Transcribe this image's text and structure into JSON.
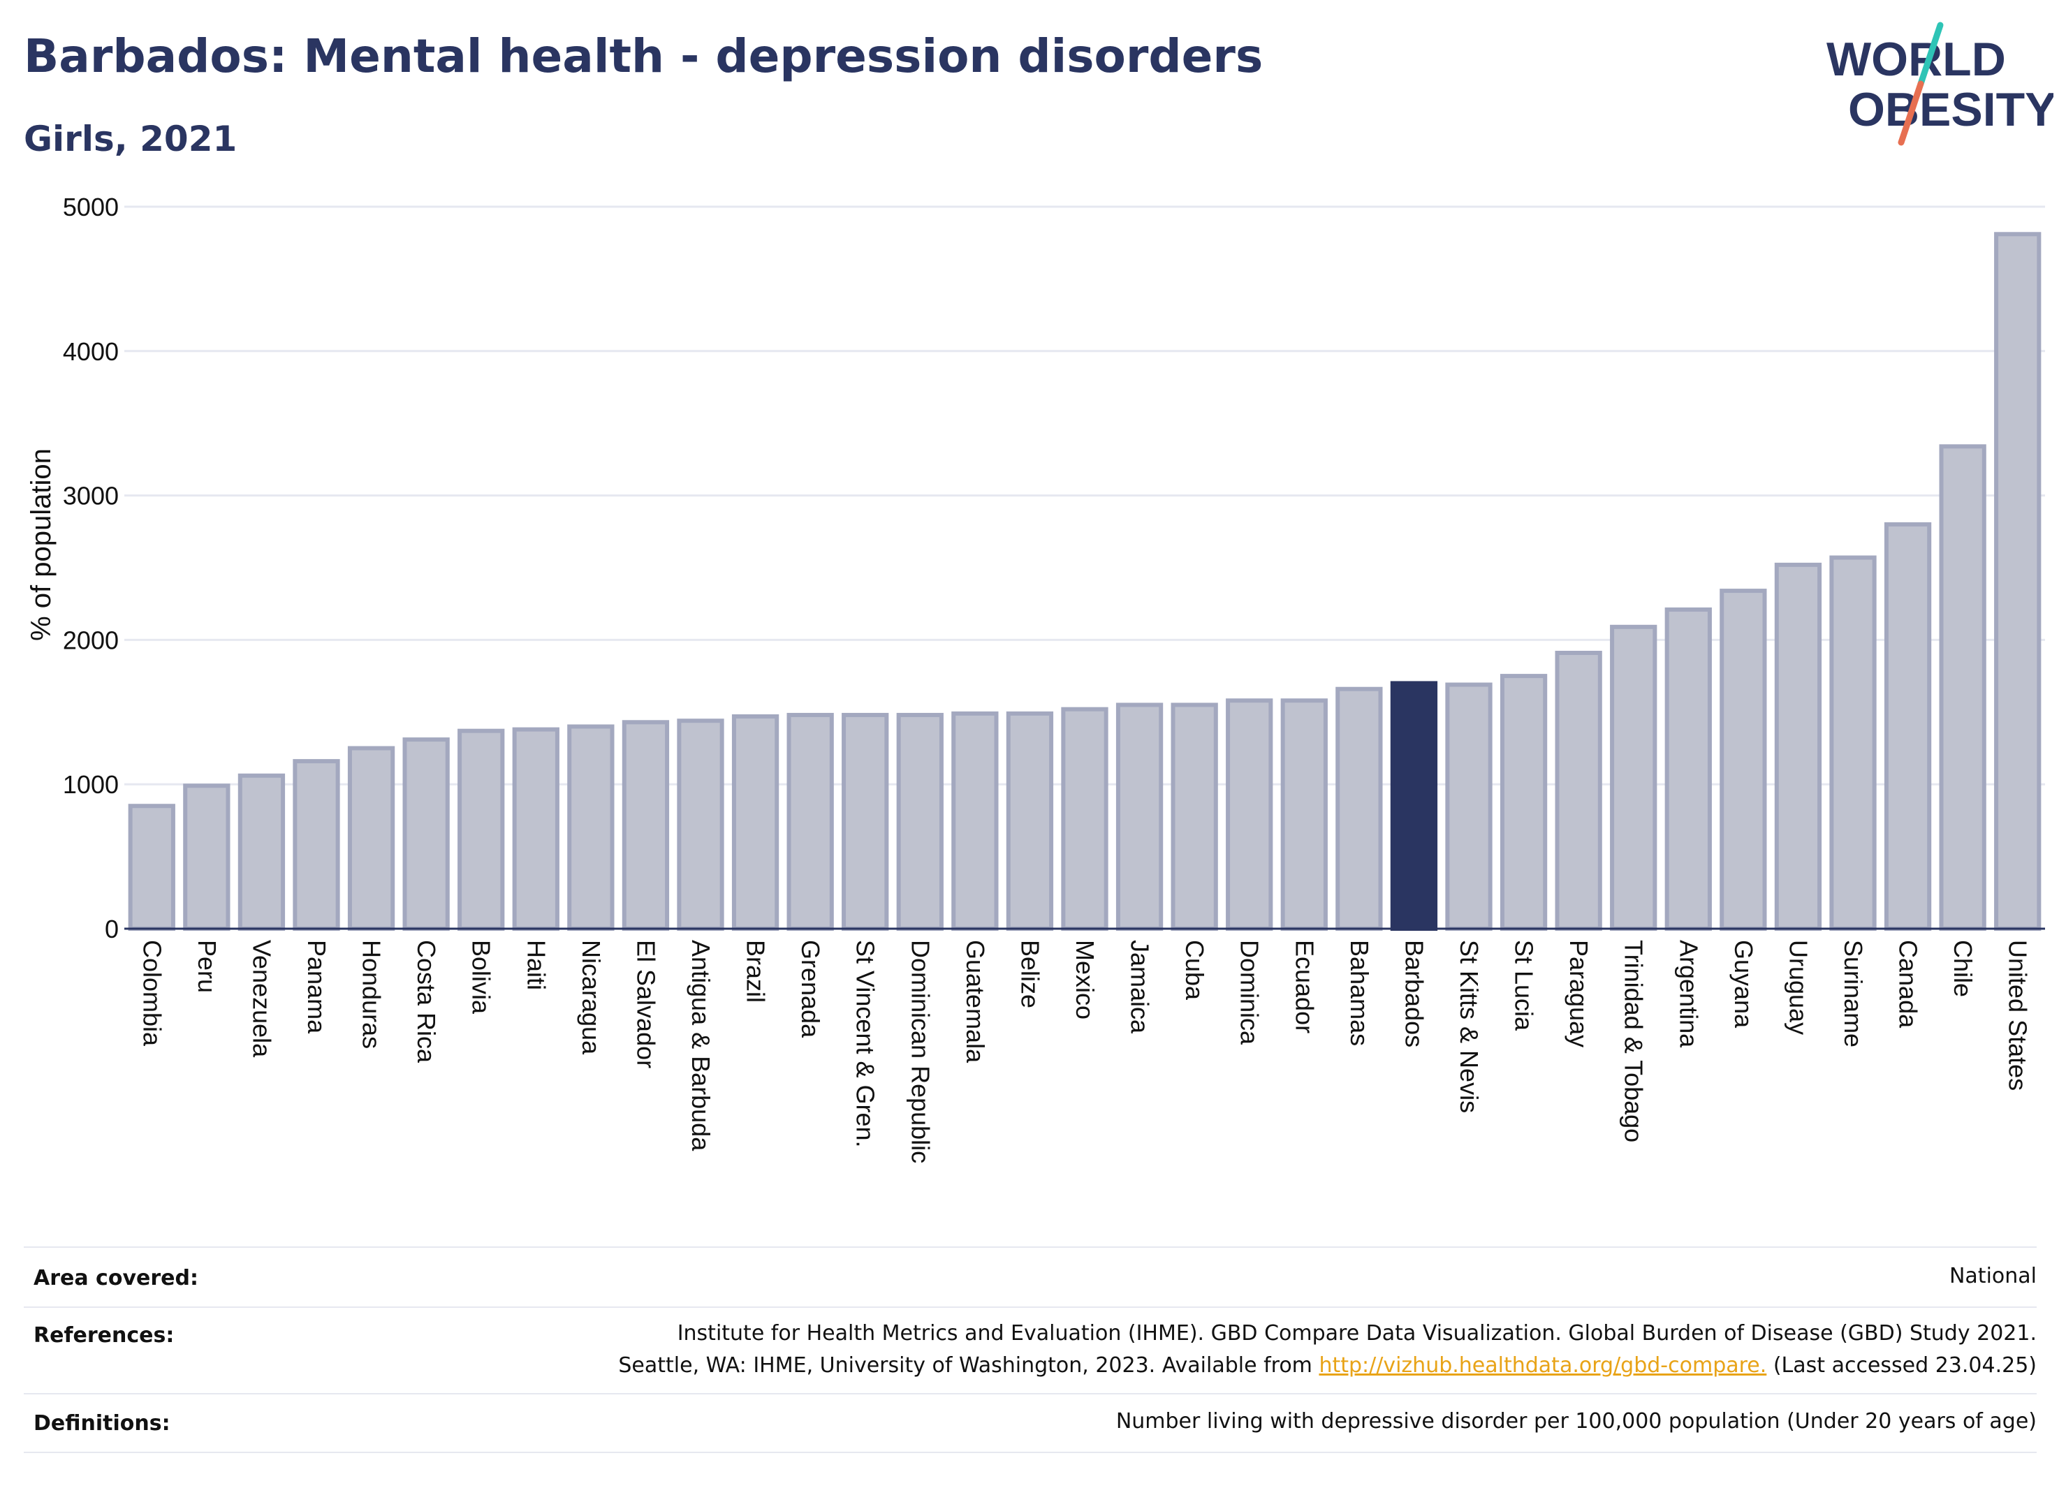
{
  "header": {
    "title": "Barbados: Mental health - depression disorders",
    "subtitle": "Girls, 2021"
  },
  "logo": {
    "line1": "WORLD",
    "line2": "OBESITY",
    "accent_colors": [
      "#2ec4b6",
      "#e76f51"
    ],
    "text_color": "#2a3561"
  },
  "colors": {
    "bar": "#bfc2cf",
    "bar_stroke": "#a3a8bf",
    "highlight": "#2a3561",
    "grid": "#e6e8f0",
    "axis": "#2a3561"
  },
  "chart_data": {
    "type": "bar",
    "ylabel": "% of population",
    "ylim": [
      0,
      5000
    ],
    "yticks": [
      0,
      1000,
      2000,
      3000,
      4000,
      5000
    ],
    "highlight": "Barbados",
    "grid": true,
    "categories": [
      "Colombia",
      "Peru",
      "Venezuela",
      "Panama",
      "Honduras",
      "Costa Rica",
      "Bolivia",
      "Haiti",
      "Nicaragua",
      "El Salvador",
      "Antigua & Barbuda",
      "Brazil",
      "Grenada",
      "St Vincent & Gren.",
      "Dominican Republic",
      "Guatemala",
      "Belize",
      "Mexico",
      "Jamaica",
      "Cuba",
      "Dominica",
      "Ecuador",
      "Bahamas",
      "Barbados",
      "St Kitts & Nevis",
      "St Lucia",
      "Paraguay",
      "Trinidad & Tobago",
      "Argentina",
      "Guyana",
      "Uruguay",
      "Suriname",
      "Canada",
      "Chile",
      "United States"
    ],
    "values": [
      850,
      990,
      1060,
      1160,
      1250,
      1310,
      1370,
      1380,
      1400,
      1430,
      1440,
      1470,
      1480,
      1480,
      1480,
      1490,
      1490,
      1520,
      1550,
      1550,
      1580,
      1580,
      1660,
      1700,
      1690,
      1750,
      1910,
      2090,
      2210,
      2340,
      2520,
      2570,
      2800,
      3340,
      4810
    ]
  },
  "footer": {
    "area_label": "Area covered:",
    "area_value": "National",
    "references_label": "References:",
    "references_line1": "Institute for Health Metrics and Evaluation (IHME). GBD Compare Data Visualization. Global Burden of Disease (GBD) Study 2021.",
    "references_line2_prefix": "Seattle, WA: IHME, University of Washington, 2023. Available from ",
    "references_link": "http://vizhub.healthdata.org/gbd-compare.",
    "references_line2_suffix": " (Last accessed 23.04.25)",
    "definitions_label": "Definitions:",
    "definitions_value": "Number living with depressive disorder per 100,000 population (Under 20 years of age)"
  }
}
